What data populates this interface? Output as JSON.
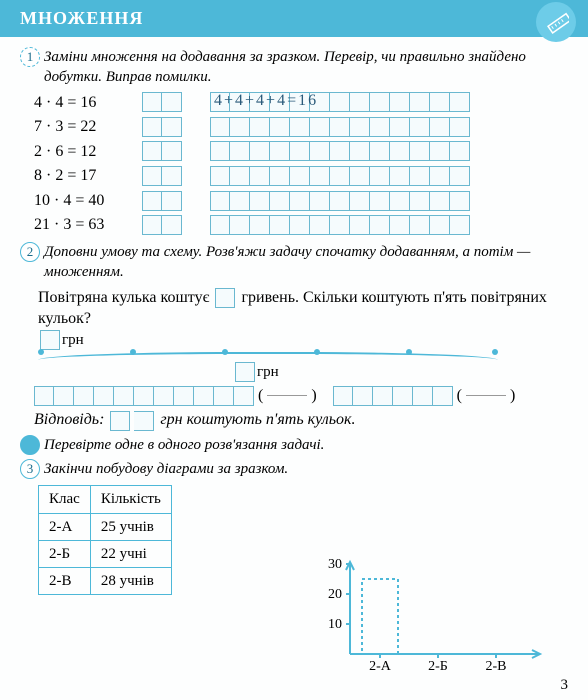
{
  "header": {
    "title": "МНОЖЕННЯ"
  },
  "task1": {
    "text": "Заміни множення на додавання за зразком. Перевір, чи правильно знайдено добутки. Виправ помилки.",
    "equations": [
      {
        "left": "4 · 4 = 16",
        "small_boxes": 2,
        "grid_boxes": 13,
        "handwritten": "4+4+4+4=16"
      },
      {
        "left": "7 · 3 = 22",
        "small_boxes": 2,
        "grid_boxes": 13,
        "handwritten": ""
      },
      {
        "left": "2 · 6 = 12",
        "small_boxes": 2,
        "grid_boxes": 13,
        "handwritten": ""
      },
      {
        "left": "8 · 2 = 17",
        "small_boxes": 2,
        "grid_boxes": 13,
        "handwritten": ""
      },
      {
        "left": "10 · 4 = 40",
        "small_boxes": 2,
        "grid_boxes": 13,
        "handwritten": ""
      },
      {
        "left": "21 · 3 = 63",
        "small_boxes": 2,
        "grid_boxes": 13,
        "handwritten": ""
      }
    ]
  },
  "task2": {
    "text": "Доповни умову та схему. Розв'яжи задачу спочатку додаванням, а потім — множенням.",
    "problem_a": "Повітряна кулька коштує",
    "problem_b": "гривень. Скільки коштують п'ять повітряних кульок?",
    "grn": "грн",
    "answer_label": "Відповідь:",
    "answer_text": "грн коштують п'ять кульок.",
    "check": "Перевірте одне в одного розв'язання задачі."
  },
  "task3": {
    "text": "Закінчи побудову діаграми за зразком.",
    "table": {
      "headers": [
        "Клас",
        "Кількість"
      ],
      "rows": [
        [
          "2-А",
          "25 учнів"
        ],
        [
          "2-Б",
          "22 учні"
        ],
        [
          "2-В",
          "28 учнів"
        ]
      ]
    },
    "chart": {
      "y_ticks": [
        10,
        20,
        30
      ],
      "x_labels": [
        "2-А",
        "2-Б",
        "2-В"
      ],
      "bar_value": 25,
      "y_max": 30,
      "axis_color": "#4db8d8",
      "bar_stroke": "#4db8d8",
      "grid_dash": "3,3"
    }
  },
  "page_number": "3"
}
